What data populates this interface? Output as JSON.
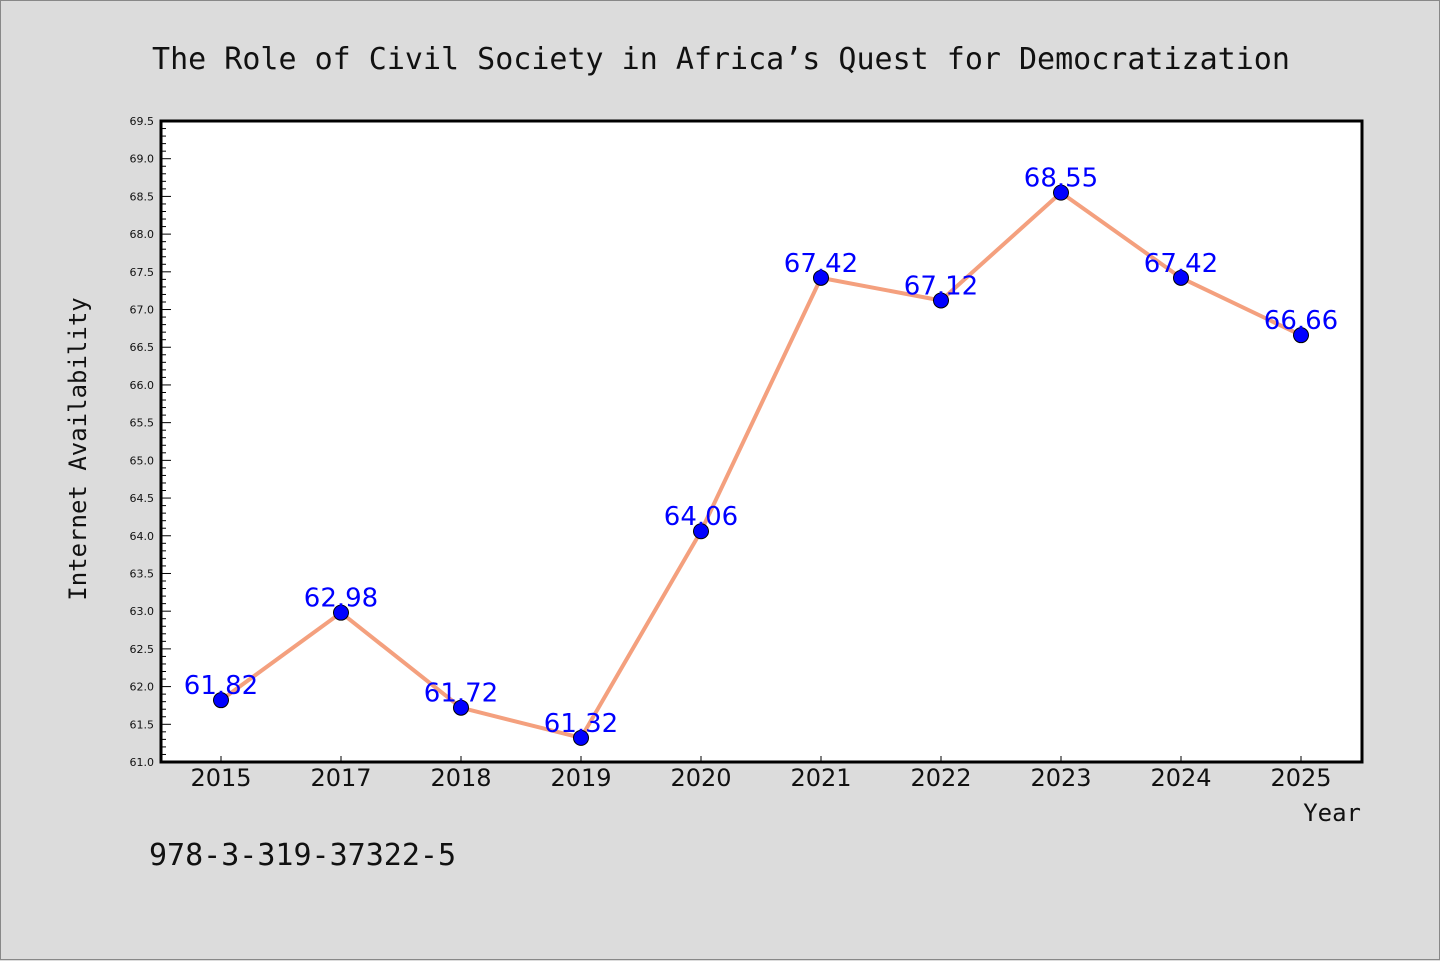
{
  "chart_data": {
    "type": "line",
    "title": "The Role of Civil Society in Africa’s Quest for Democratization",
    "xlabel": "Year",
    "ylabel": "Internet Availability",
    "categories": [
      "2015",
      "2017",
      "2018",
      "2019",
      "2020",
      "2021",
      "2022",
      "2023",
      "2024",
      "2025"
    ],
    "series": [
      {
        "values": [
          61.82,
          62.98,
          61.72,
          61.32,
          64.06,
          67.42,
          67.12,
          68.55,
          67.42,
          66.66
        ]
      }
    ],
    "data_labels": [
      "61.82",
      "62.98",
      "61.72",
      "61.32",
      "64.06",
      "67.42",
      "67.12",
      "68.55",
      "67.42",
      "66.66"
    ],
    "ylim": [
      61.0,
      69.5
    ],
    "yticks": [
      "61.0",
      "61.5",
      "62.0",
      "62.5",
      "63.0",
      "63.5",
      "64.0",
      "64.5",
      "65.0",
      "65.5",
      "66.0",
      "66.5",
      "67.0",
      "67.5",
      "68.0",
      "68.5",
      "69.0",
      "69.5"
    ],
    "grid": false,
    "colors": {
      "line": "#f4a07e",
      "marker": "#0000ff",
      "label": "#0000ff",
      "background": "#dcdcdc",
      "plot_bg": "#ffffff"
    }
  },
  "footer": {
    "isbn": "978-3-319-37322-5"
  }
}
